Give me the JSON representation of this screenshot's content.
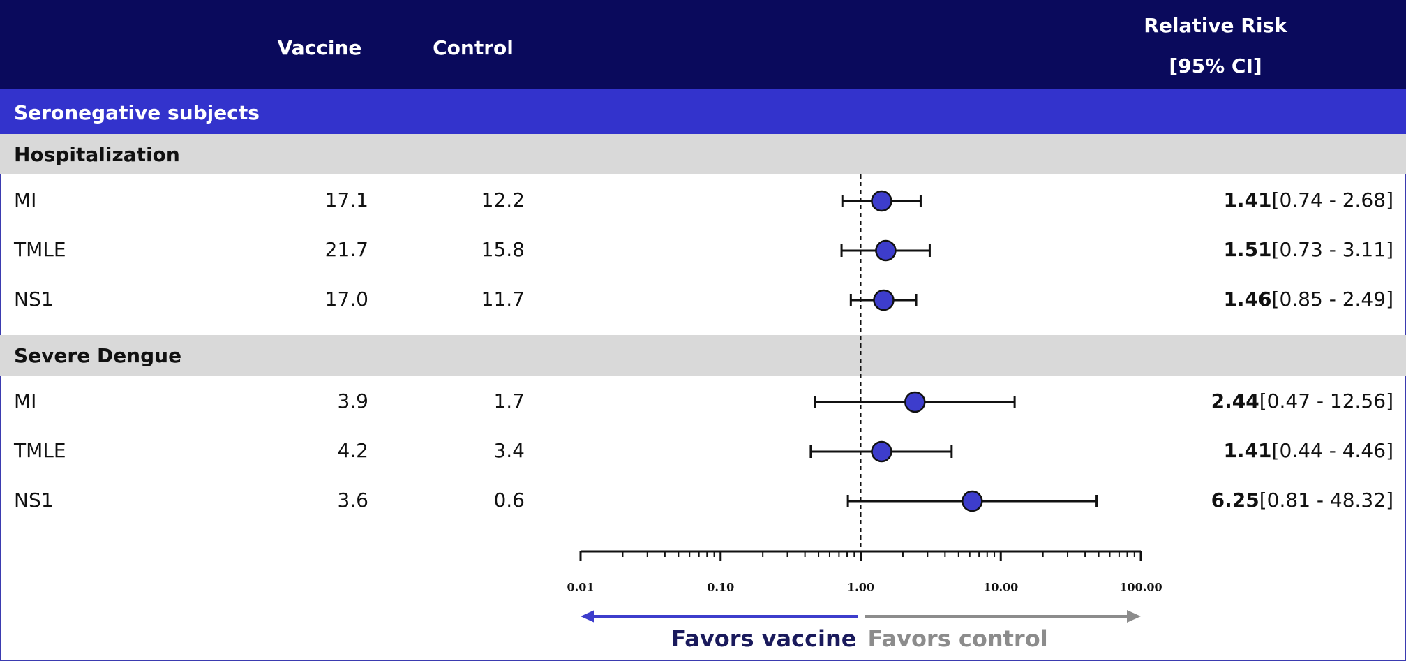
{
  "chart_data": {
    "type": "forest",
    "log_x": true,
    "columns": {
      "vaccine": "Vaccine",
      "control": "Control",
      "rr": [
        "Relative Risk",
        "[95% CI]"
      ]
    },
    "section": "Seronegative subjects",
    "xlim": [
      0.01,
      100
    ],
    "xticks": [
      {
        "value": 0.01,
        "label": "0.01"
      },
      {
        "value": 0.1,
        "label": "0.10"
      },
      {
        "value": 1,
        "label": "1.00"
      },
      {
        "value": 10,
        "label": "10.00"
      },
      {
        "value": 100,
        "label": "100.00"
      }
    ],
    "minor_ticks": true,
    "reference": 1,
    "marker_color": "#3d3dcc",
    "favors_left": {
      "text": "Favors vaccine",
      "color": "#3d3dcc"
    },
    "favors_right": {
      "text": "Favors control",
      "color": "#8c8c8c"
    },
    "groups": [
      {
        "name": "Hospitalization",
        "rows": [
          {
            "label": "MI",
            "vaccine": "17.1",
            "control": "12.2",
            "rr": 1.41,
            "lo": 0.74,
            "hi": 2.68,
            "ci_label": "[0.74 - 2.68]"
          },
          {
            "label": "TMLE",
            "vaccine": "21.7",
            "control": "15.8",
            "rr": 1.51,
            "lo": 0.73,
            "hi": 3.11,
            "ci_label": "[0.73 - 3.11]"
          },
          {
            "label": "NS1",
            "vaccine": "17.0",
            "control": "11.7",
            "rr": 1.46,
            "lo": 0.85,
            "hi": 2.49,
            "ci_label": "[0.85 - 2.49]"
          }
        ]
      },
      {
        "name": "Severe Dengue",
        "rows": [
          {
            "label": "MI",
            "vaccine": "3.9",
            "control": "1.7",
            "rr": 2.44,
            "lo": 0.47,
            "hi": 12.56,
            "ci_label": "[0.47 - 12.56]"
          },
          {
            "label": "TMLE",
            "vaccine": "4.2",
            "control": "3.4",
            "rr": 1.41,
            "lo": 0.44,
            "hi": 4.46,
            "ci_label": "[0.44 - 4.46]"
          },
          {
            "label": "NS1",
            "vaccine": "3.6",
            "control": "0.6",
            "rr": 6.25,
            "lo": 0.81,
            "hi": 48.32,
            "ci_label": "[0.81 - 48.32]"
          }
        ]
      }
    ]
  }
}
